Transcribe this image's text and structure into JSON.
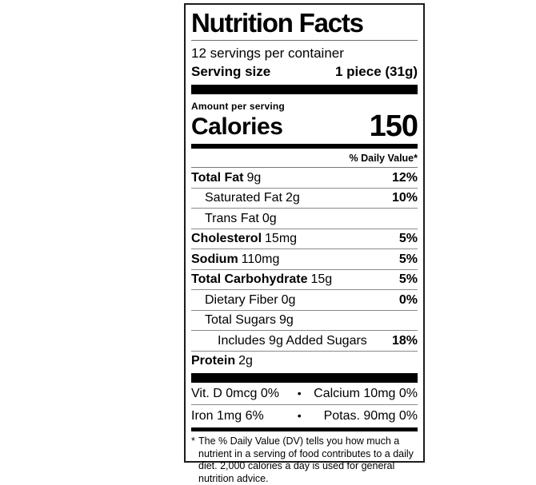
{
  "label": {
    "title": "Nutrition Facts",
    "servings_per_container": "12 servings per container",
    "serving_size_label": "Serving size",
    "serving_size_value": "1 piece (31g)",
    "amount_per_serving": "Amount per serving",
    "calories_label": "Calories",
    "calories_value": "150",
    "daily_value_header": "% Daily Value*",
    "nutrients": [
      {
        "name": "Total Fat",
        "amount": "9g",
        "dv": "12%"
      },
      {
        "name": "Saturated Fat",
        "amount": "2g",
        "dv": "10%"
      },
      {
        "name": "Trans Fat",
        "amount": "0g",
        "dv": ""
      },
      {
        "name": "Cholesterol",
        "amount": "15mg",
        "dv": "5%"
      },
      {
        "name": "Sodium",
        "amount": "110mg",
        "dv": "5%"
      },
      {
        "name": "Total Carbohydrate",
        "amount": "15g",
        "dv": "5%"
      },
      {
        "name": "Dietary Fiber",
        "amount": "0g",
        "dv": "0%"
      },
      {
        "name": "Total Sugars",
        "amount": "9g",
        "dv": ""
      },
      {
        "name": "Includes 9g Added Sugars",
        "amount": "",
        "dv": "18%"
      },
      {
        "name": "Protein",
        "amount": "2g",
        "dv": ""
      }
    ],
    "micronutrients": {
      "separator": "•",
      "rows": [
        {
          "left": "Vit. D 0mcg 0%",
          "right": "Calcium 10mg 0%"
        },
        {
          "left": "Iron 1mg 6%",
          "right": "Potas. 90mg 0%"
        }
      ]
    },
    "footnote_marker": "*",
    "footnote": "The % Daily Value (DV) tells you how much a nutrient in a serving of food contributes to a daily diet. 2,000 calories a day is used for general nutrition advice."
  },
  "colors": {
    "text": "#000000",
    "border": "#1c1c1c",
    "background": "#ffffff"
  }
}
